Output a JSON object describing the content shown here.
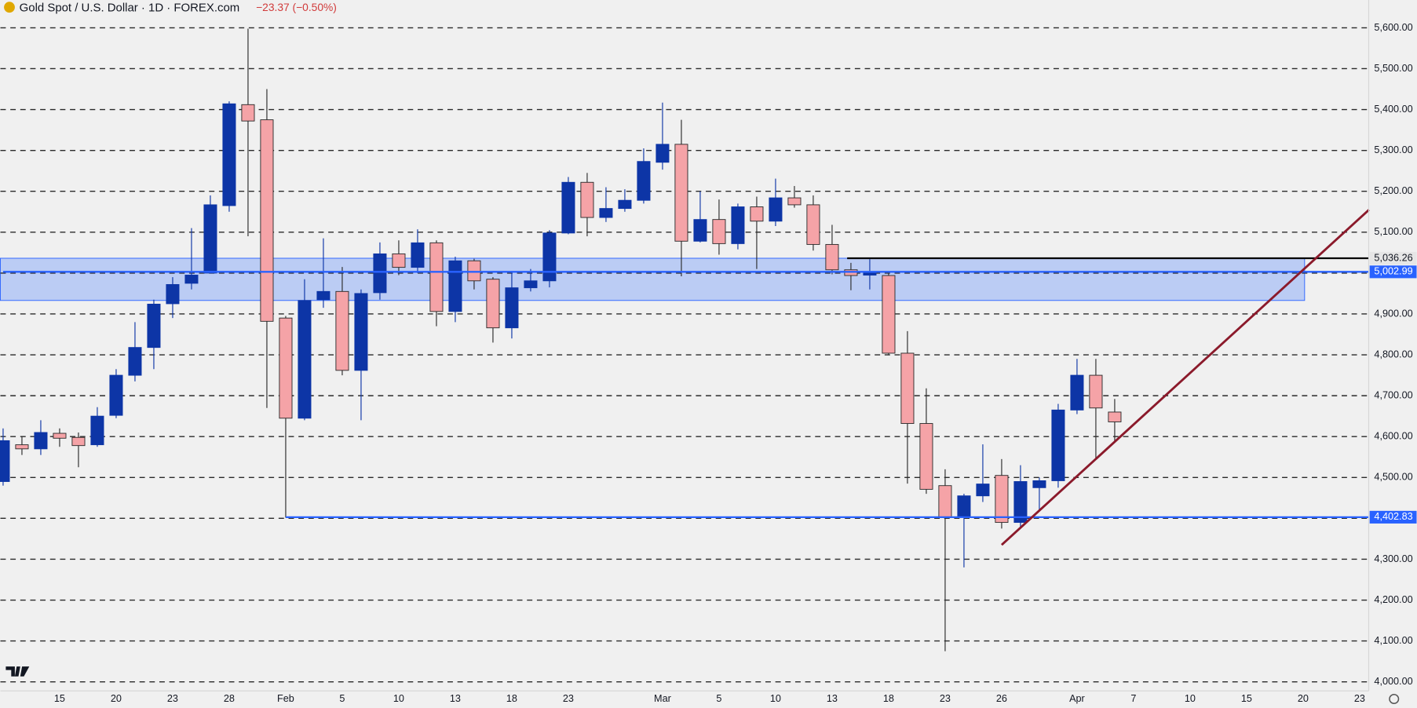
{
  "chart_data": {
    "type": "candlestick",
    "title": "Gold Spot / U.S. Dollar · 1D · FOREX.com",
    "change": "−23.37 (−0.50%)",
    "categories": [
      null,
      null,
      null,
      "15",
      null,
      null,
      "20",
      null,
      null,
      "23",
      null,
      null,
      "28",
      null,
      null,
      "Feb",
      null,
      null,
      "5",
      null,
      null,
      "10",
      null,
      null,
      "13",
      null,
      null,
      "18",
      null,
      null,
      "23",
      null,
      null,
      null,
      null,
      "Mar",
      null,
      null,
      "5",
      null,
      null,
      "10",
      null,
      null,
      "13",
      null,
      null,
      "18",
      null,
      null,
      "23",
      null,
      null,
      "26",
      null,
      null,
      null,
      "Apr",
      null,
      null,
      "7",
      null,
      null,
      "10",
      null,
      null,
      "15",
      null,
      null,
      "20",
      null,
      null,
      "23"
    ],
    "open": [
      4490,
      4580,
      4570,
      4608,
      4598,
      4580,
      4652,
      4750,
      4818,
      4925,
      4975,
      5000,
      5165,
      5412,
      5375,
      4890,
      4645,
      4935,
      4955,
      4762,
      4952,
      5047,
      5014,
      5074,
      4906,
      5030,
      4985,
      4866,
      4964,
      4981,
      5098,
      5222,
      5136,
      5158,
      5178,
      5271,
      5315,
      5078,
      5131,
      5072,
      5162,
      5127,
      5184,
      5167,
      5070,
      5008,
      4995,
      4994,
      4804,
      4632,
      4480,
      4402,
      4455,
      4505,
      4390,
      4475,
      4492,
      4665,
      4750,
      4660,
      null,
      null,
      null,
      null,
      null,
      null,
      null,
      null,
      null,
      null,
      null,
      null,
      null
    ],
    "high": [
      4620,
      4600,
      4640,
      4620,
      4610,
      4672,
      4765,
      4880,
      4935,
      4990,
      5110,
      5190,
      5420,
      5598,
      5450,
      4895,
      4985,
      5085,
      5015,
      4960,
      5075,
      5080,
      5107,
      5080,
      5040,
      5035,
      4990,
      5005,
      5010,
      5105,
      5235,
      5245,
      5210,
      5205,
      5305,
      5417,
      5375,
      5200,
      5180,
      5170,
      5187,
      5231,
      5213,
      5190,
      5118,
      5025,
      5034,
      5003,
      4858,
      4718,
      4520,
      4460,
      4581,
      4545,
      4530,
      4500,
      4680,
      4790,
      4790,
      4692,
      null,
      null,
      null,
      null,
      null,
      null,
      null,
      null,
      null,
      null,
      null,
      null,
      null
    ],
    "low": [
      4480,
      4555,
      4555,
      4575,
      4525,
      4575,
      4645,
      4735,
      4765,
      4890,
      4960,
      5000,
      5150,
      5090,
      4670,
      4402,
      4640,
      4915,
      4750,
      4640,
      4935,
      4995,
      5000,
      4870,
      4880,
      4960,
      4830,
      4840,
      4955,
      4965,
      5095,
      5090,
      5125,
      5150,
      5170,
      5253,
      4992,
      5075,
      5045,
      5058,
      5010,
      5115,
      5160,
      5055,
      4997,
      4958,
      4960,
      4800,
      4485,
      4460,
      4075,
      4280,
      4440,
      4375,
      4375,
      4420,
      4475,
      4655,
      4545,
      4590,
      null,
      null,
      null,
      null,
      null,
      null,
      null,
      null,
      null,
      null,
      null,
      null,
      null
    ],
    "close": [
      4590,
      4570,
      4610,
      4596,
      4578,
      4650,
      4750,
      4818,
      4924,
      4972,
      4995,
      5167,
      5414,
      5372,
      4882,
      4645,
      4933,
      4955,
      4762,
      4950,
      5047,
      5014,
      5074,
      4906,
      5030,
      4981,
      4866,
      4964,
      4981,
      5098,
      5222,
      5136,
      5158,
      5178,
      5273,
      5315,
      5078,
      5131,
      5072,
      5162,
      5127,
      5184,
      5167,
      5070,
      5008,
      4994,
      5000,
      4804,
      4632,
      4471,
      4402,
      4455,
      4484,
      4390,
      4490,
      4492,
      4665,
      4750,
      4670,
      4636,
      null,
      null,
      null,
      null,
      null,
      null,
      null,
      null,
      null,
      null,
      null,
      null,
      null
    ],
    "up_color": "#0d35a6",
    "down_color": "#f5a3a7",
    "ylim": [
      3978,
      5668
    ],
    "yticks": [
      {
        "value": 4000,
        "label": "4,000.00"
      },
      {
        "value": 4100,
        "label": "4,100.00"
      },
      {
        "value": 4200,
        "label": "4,200.00"
      },
      {
        "value": 4300,
        "label": "4,300.00"
      },
      {
        "value": 4400,
        "label": "4,400.00"
      },
      {
        "value": 4500,
        "label": "4,500.00"
      },
      {
        "value": 4600,
        "label": "4,600.00"
      },
      {
        "value": 4700,
        "label": "4,700.00"
      },
      {
        "value": 4800,
        "label": "4,800.00"
      },
      {
        "value": 4900,
        "label": "4,900.00"
      },
      {
        "value": 5000,
        "label": "5,000.00"
      },
      {
        "value": 5100,
        "label": "5,100.00"
      },
      {
        "value": 5200,
        "label": "5,200.00"
      },
      {
        "value": 5300,
        "label": "5,300.00"
      },
      {
        "value": 5400,
        "label": "5,400.00"
      },
      {
        "value": 5500,
        "label": "5,500.00"
      },
      {
        "value": 5600,
        "label": "5,600.00"
      }
    ],
    "grid": true,
    "zone": {
      "low": 4933,
      "high": 5036.26,
      "color": "#a9c0f5"
    },
    "levels": [
      {
        "value": 5036.26,
        "label": "5,036.26",
        "color": "#000000"
      },
      {
        "value": 5002.99,
        "label": "5,002.99",
        "color": "#2962ff"
      },
      {
        "value": 4402.83,
        "label": "4,402.83",
        "color": "#2962ff"
      }
    ],
    "trendline": {
      "x": [
        53,
        72.5
      ],
      "values": [
        4335,
        5155
      ],
      "color": "#8b1a2b"
    }
  }
}
